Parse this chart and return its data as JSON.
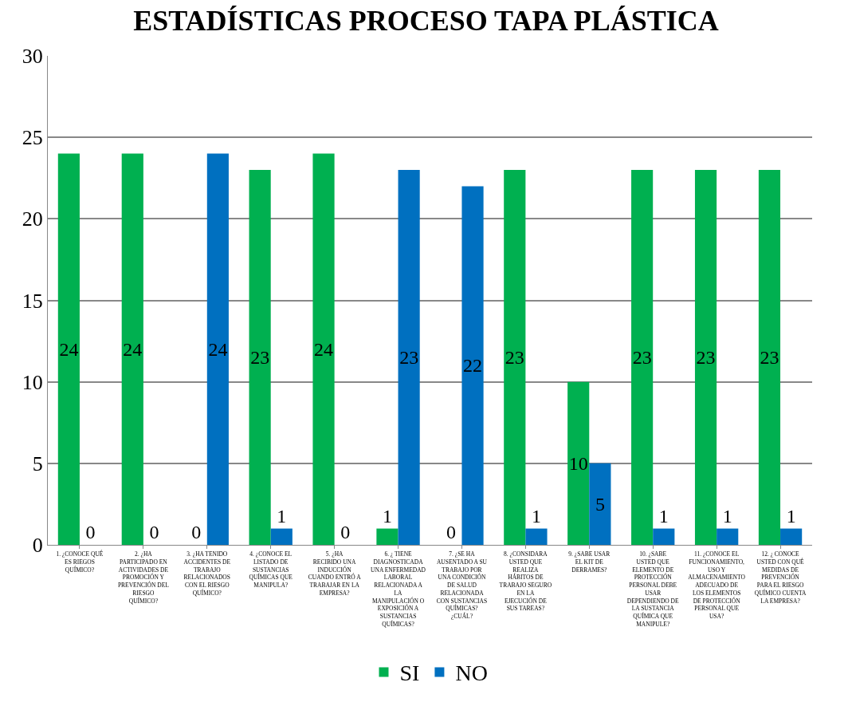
{
  "chart_data": {
    "type": "bar",
    "title": "ESTADÍSTICAS PROCESO TAPA PLÁSTICA",
    "categories": [
      "1. ¿CONOCE QUÉ ES RIEGOS QUÍMICO?",
      "2. ¿HA PARTICIPADO EN ACTIVIDADES DE PROMOCIÓN Y PREVENCIÓN DEL RIESGO QUÍMICO?",
      "3. ¿HA TENIDO ACCIDENTES DE TRABAJO RELACIONADOS CON EL RIESGO QUÍMICO?",
      "4. ¿CONOCE EL LISTADO DE SUSTANCIAS QUÍMICAS QUE MANIPULA?",
      "5. ¿HA RECIBIDO UNA INDUCCIÓN CUANDO ENTRÓ A TRABAJAR EN LA EMPRESA?",
      "6. ¿ TIENE DIAGNOSTICADA UNA ENFERMEDAD LABORAL RELACIONADA A LA MANIPULACIÓN O EXPOSICIÓN A SUSTANCIAS QUÍMICAS?",
      "7. ¿SE HA AUSENTADO A SU TRABAJO POR UNA CONDICIÓN DE SALUD RELACIONADA CON SUSTANCIAS QUÍMICAS? ¿CUÁL?",
      "8. ¿CONSIDARA USTED QUE REALIZA HÁBITOS DE TRABAJO SEGURO EN LA EJECUCIÓN DE SUS TAREAS?",
      "9. ¿SABE USAR EL KIT DE DERRAMES?",
      "10. ¿SABE USTED QUE ELEMENTO DE PROTECCIÓN PERSONAL DEBE USAR DEPENDIENDO DE LA SUSTANCIA QUÍMICA QUE MANIPULE?",
      "11. ¿CONOCE EL FUNCIONAMIENTO, USO Y ALMACENAMIENTO ADECUADO DE LOS ELEMENTOS DE PROTECCIÓN PERSONAL QUE USA?",
      "12. ¿ CONOCE USTED CON QUÉ MEDIDAS DE PREVENCIÓN PARA EL RIESGO QUÍMICO CUENTA LA EMPRESA?"
    ],
    "series": [
      {
        "name": "SI",
        "color": "#00b050",
        "values": [
          24,
          24,
          0,
          23,
          24,
          1,
          0,
          23,
          10,
          23,
          23,
          23
        ]
      },
      {
        "name": "NO",
        "color": "#0070c0",
        "values": [
          0,
          0,
          24,
          1,
          0,
          23,
          22,
          1,
          5,
          1,
          1,
          1
        ]
      }
    ],
    "ylim": [
      0,
      30
    ],
    "yticks": [
      0,
      5,
      10,
      15,
      20,
      25,
      30
    ],
    "grid": "y",
    "legend": "bottom",
    "data_labels": true
  }
}
